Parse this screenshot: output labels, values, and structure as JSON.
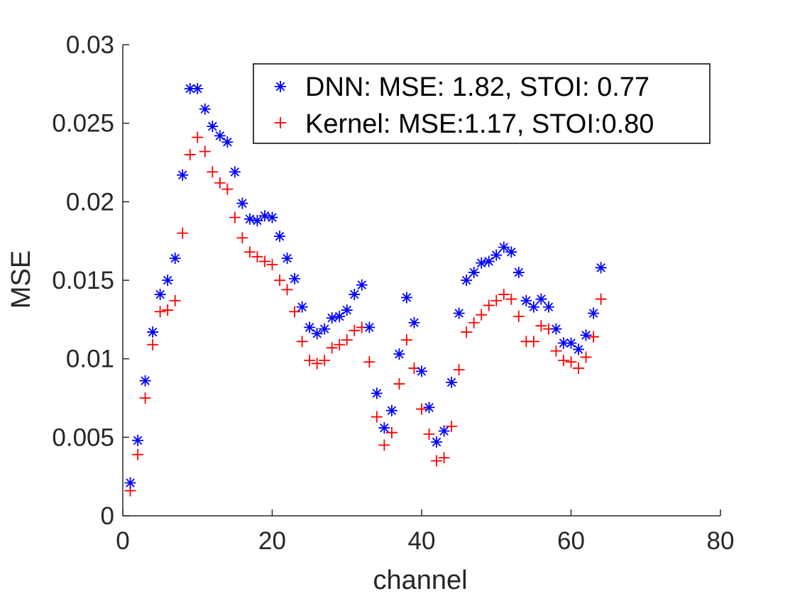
{
  "colors": {
    "dnn": "#0000ff",
    "kernel": "#ff0000",
    "axis": "#262626"
  },
  "chart_data": {
    "type": "scatter",
    "title": "",
    "xlabel": "channel",
    "ylabel": "MSE",
    "xlim": [
      0,
      80
    ],
    "ylim": [
      0,
      0.03
    ],
    "xticks": [
      0,
      20,
      40,
      60,
      80
    ],
    "yticks": [
      0,
      0.005,
      0.01,
      0.015,
      0.02,
      0.025,
      0.03
    ],
    "xtick_labels": [
      "0",
      "20",
      "40",
      "60",
      "80"
    ],
    "ytick_labels": [
      "0",
      "0.005",
      "0.01",
      "0.015",
      "0.02",
      "0.025",
      "0.03"
    ],
    "legend_position": "top-right",
    "series": [
      {
        "name": "DNN: MSE: 1.82, STOI: 0.77",
        "marker": "asterisk",
        "color": "#0000ff",
        "x": [
          1,
          2,
          3,
          4,
          5,
          6,
          7,
          8,
          9,
          10,
          11,
          12,
          13,
          14,
          15,
          16,
          17,
          18,
          19,
          20,
          21,
          22,
          23,
          24,
          25,
          26,
          27,
          28,
          29,
          30,
          31,
          32,
          33,
          34,
          35,
          36,
          37,
          38,
          39,
          40,
          41,
          42,
          43,
          44,
          45,
          46,
          47,
          48,
          49,
          50,
          51,
          52,
          53,
          54,
          55,
          56,
          57,
          58,
          59,
          60,
          61,
          62,
          63,
          64
        ],
        "y": [
          0.0021,
          0.0048,
          0.0086,
          0.0117,
          0.0141,
          0.015,
          0.0164,
          0.0217,
          0.0272,
          0.0272,
          0.0259,
          0.0248,
          0.0242,
          0.0238,
          0.0219,
          0.0199,
          0.0189,
          0.0188,
          0.0191,
          0.019,
          0.0178,
          0.0164,
          0.0151,
          0.0133,
          0.012,
          0.0116,
          0.0119,
          0.0126,
          0.0127,
          0.0131,
          0.0141,
          0.0147,
          0.012,
          0.0078,
          0.0056,
          0.0067,
          0.0103,
          0.0139,
          0.0123,
          0.0092,
          0.0069,
          0.0047,
          0.0054,
          0.0085,
          0.0129,
          0.015,
          0.0155,
          0.0161,
          0.0162,
          0.0166,
          0.0171,
          0.0168,
          0.0155,
          0.0137,
          0.0133,
          0.0138,
          0.0133,
          0.0119,
          0.011,
          0.011,
          0.0106,
          0.0115,
          0.0129,
          0.0158
        ]
      },
      {
        "name": "Kernel: MSE:1.17, STOI:0.80",
        "marker": "plus",
        "color": "#ff0000",
        "x": [
          1,
          2,
          3,
          4,
          5,
          6,
          7,
          8,
          9,
          10,
          11,
          12,
          13,
          14,
          15,
          16,
          17,
          18,
          19,
          20,
          21,
          22,
          23,
          24,
          25,
          26,
          27,
          28,
          29,
          30,
          31,
          32,
          33,
          34,
          35,
          36,
          37,
          38,
          39,
          40,
          41,
          42,
          43,
          44,
          45,
          46,
          47,
          48,
          49,
          50,
          51,
          52,
          53,
          54,
          55,
          56,
          57,
          58,
          59,
          60,
          61,
          62,
          63,
          64
        ],
        "y": [
          0.0016,
          0.0039,
          0.0075,
          0.0109,
          0.013,
          0.0131,
          0.0137,
          0.018,
          0.023,
          0.0241,
          0.0232,
          0.0219,
          0.0212,
          0.0208,
          0.019,
          0.0177,
          0.0168,
          0.0165,
          0.0162,
          0.016,
          0.015,
          0.0144,
          0.013,
          0.0111,
          0.0099,
          0.0097,
          0.0099,
          0.0107,
          0.0109,
          0.0112,
          0.0118,
          0.012,
          0.0098,
          0.0063,
          0.0045,
          0.0053,
          0.0084,
          0.0112,
          0.0094,
          0.0068,
          0.0052,
          0.0035,
          0.0037,
          0.0057,
          0.0093,
          0.0117,
          0.0123,
          0.0128,
          0.0134,
          0.0137,
          0.0141,
          0.0138,
          0.0127,
          0.0111,
          0.0111,
          0.0121,
          0.0119,
          0.0105,
          0.0099,
          0.0098,
          0.0094,
          0.0101,
          0.0114,
          0.0138
        ]
      }
    ]
  }
}
